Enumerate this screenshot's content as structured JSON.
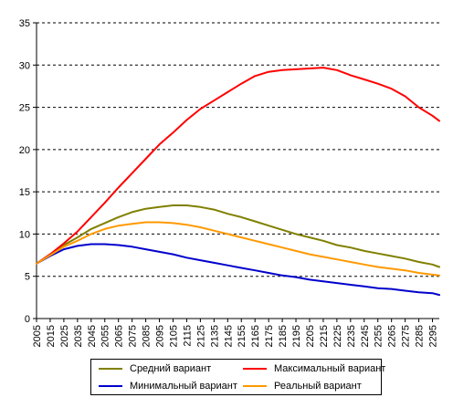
{
  "chart_data": {
    "type": "line",
    "title": "",
    "xlabel": "",
    "ylabel": "",
    "ylim": [
      0,
      35
    ],
    "y_ticks": [
      0,
      5,
      10,
      15,
      20,
      25,
      30,
      35
    ],
    "x_ticks": [
      2005,
      2015,
      2025,
      2035,
      2045,
      2055,
      2065,
      2075,
      2085,
      2095,
      2105,
      2115,
      2125,
      2135,
      2145,
      2155,
      2165,
      2175,
      2185,
      2195,
      2205,
      2215,
      2225,
      2235,
      2245,
      2255,
      2265,
      2275,
      2285,
      2295
    ],
    "x_range": [
      2005,
      2300
    ],
    "grid": "horizontal dashed",
    "legend_position": "bottom",
    "x": [
      2005,
      2015,
      2025,
      2035,
      2045,
      2055,
      2065,
      2075,
      2085,
      2095,
      2105,
      2115,
      2125,
      2135,
      2145,
      2155,
      2165,
      2175,
      2185,
      2195,
      2205,
      2215,
      2225,
      2235,
      2245,
      2255,
      2265,
      2275,
      2285,
      2295,
      2300
    ],
    "series": [
      {
        "name": "Средний вариант",
        "color": "#808000",
        "values": [
          6.5,
          7.6,
          8.7,
          9.6,
          10.6,
          11.3,
          12.0,
          12.6,
          13.0,
          13.2,
          13.4,
          13.4,
          13.2,
          12.9,
          12.4,
          12.0,
          11.5,
          11.0,
          10.5,
          10.0,
          9.6,
          9.2,
          8.7,
          8.4,
          8.0,
          7.7,
          7.4,
          7.1,
          6.7,
          6.4,
          6.1
        ]
      },
      {
        "name": "Максимальный вариант",
        "color": "#ff0000",
        "values": [
          6.5,
          7.6,
          8.9,
          10.3,
          12.0,
          13.7,
          15.5,
          17.2,
          18.9,
          20.6,
          22.0,
          23.5,
          24.8,
          25.8,
          26.8,
          27.8,
          28.7,
          29.2,
          29.4,
          29.5,
          29.6,
          29.7,
          29.4,
          28.8,
          28.3,
          27.8,
          27.2,
          26.3,
          25.0,
          24.0,
          23.4
        ]
      },
      {
        "name": "Минимальный вариант",
        "color": "#0000cc",
        "values": [
          6.5,
          7.4,
          8.2,
          8.6,
          8.8,
          8.8,
          8.7,
          8.5,
          8.2,
          7.9,
          7.6,
          7.2,
          6.9,
          6.6,
          6.3,
          6.0,
          5.7,
          5.4,
          5.1,
          4.9,
          4.6,
          4.4,
          4.2,
          4.0,
          3.8,
          3.6,
          3.5,
          3.3,
          3.1,
          3.0,
          2.8
        ]
      },
      {
        "name": "Реальный вариант",
        "color": "#ff9900",
        "values": [
          6.5,
          7.5,
          8.5,
          9.2,
          10.0,
          10.6,
          11.0,
          11.2,
          11.4,
          11.4,
          11.3,
          11.1,
          10.8,
          10.4,
          10.0,
          9.6,
          9.2,
          8.8,
          8.4,
          8.0,
          7.6,
          7.3,
          7.0,
          6.7,
          6.4,
          6.1,
          5.9,
          5.7,
          5.4,
          5.2,
          5.1
        ]
      }
    ]
  }
}
